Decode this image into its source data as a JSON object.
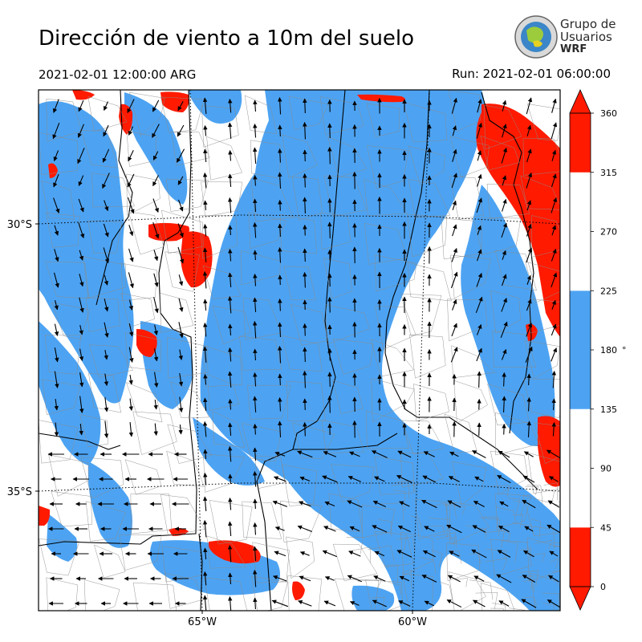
{
  "title": "Dirección de viento a 10m del suelo",
  "valid_time": "2021-02-01 12:00:00 ARG",
  "run_time": "Run: 2021-02-01 06:00:00",
  "logo": {
    "line1": "Grupo de",
    "line2": "Usuarios",
    "line3": "WRF"
  },
  "map": {
    "lat_labels": [
      "30°S",
      "35°S"
    ],
    "lon_labels": [
      "65°W",
      "60°W"
    ],
    "band_colors": {
      "red": "#ff1a00",
      "blue": "#4da3f2",
      "white": "#ffffff"
    }
  },
  "colorbar": {
    "unit": "°",
    "ticks": [
      "0",
      "45",
      "90",
      "135",
      "180",
      "225",
      "270",
      "315",
      "360"
    ],
    "bands": [
      {
        "range": [
          0,
          45
        ],
        "color": "#ff1a00"
      },
      {
        "range": [
          45,
          135
        ],
        "color": "#ffffff"
      },
      {
        "range": [
          135,
          225
        ],
        "color": "#4da3f2"
      },
      {
        "range": [
          225,
          315
        ],
        "color": "#ffffff"
      },
      {
        "range": [
          315,
          360
        ],
        "color": "#ff1a00"
      }
    ]
  }
}
